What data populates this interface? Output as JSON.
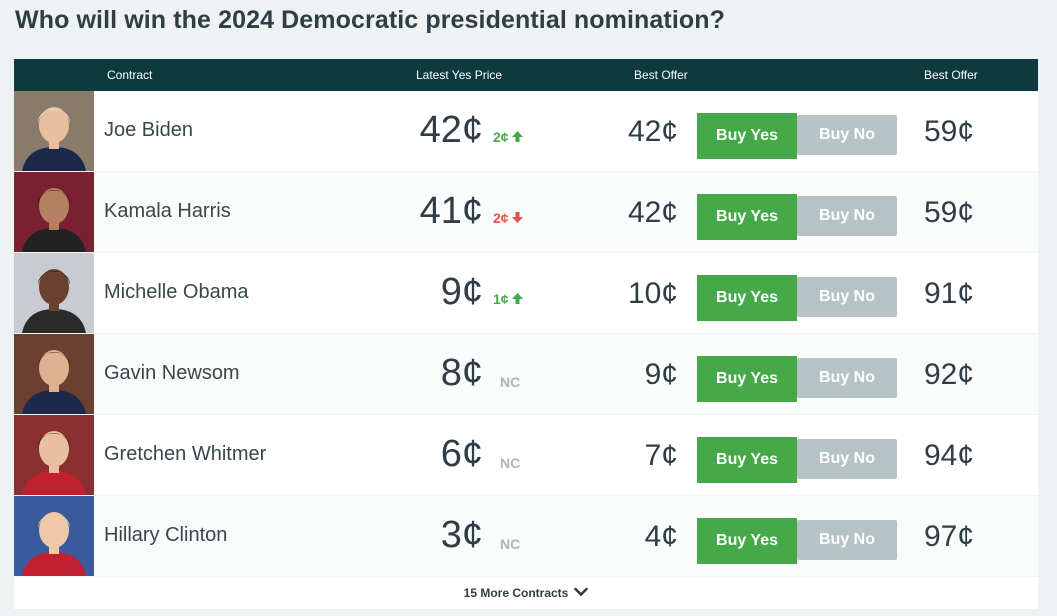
{
  "title": "Who will win the 2024 Democratic presidential nomination?",
  "headers": {
    "contract": "Contract",
    "latest_yes_price": "Latest Yes Price",
    "best_offer_yes": "Best Offer",
    "best_offer_no": "Best Offer"
  },
  "rows": [
    {
      "name": "Joe Biden",
      "price": "42¢",
      "change": "2¢",
      "direction": "up",
      "best_yes": "42¢",
      "buy_yes": "Buy Yes",
      "buy_no": "Buy No",
      "best_no": "59¢",
      "avatar_bg": "#8a7a6a",
      "skin": "#e8c0a0",
      "hair": "#f2f2f2",
      "shirt": "#1c2a4a"
    },
    {
      "name": "Kamala Harris",
      "price": "41¢",
      "change": "2¢",
      "direction": "down",
      "best_yes": "42¢",
      "buy_yes": "Buy Yes",
      "buy_no": "Buy No",
      "best_no": "59¢",
      "avatar_bg": "#7a2030",
      "skin": "#b58060",
      "hair": "#2a1a12",
      "shirt": "#222222"
    },
    {
      "name": "Michelle Obama",
      "price": "9¢",
      "change": "1¢",
      "direction": "up",
      "best_yes": "10¢",
      "buy_yes": "Buy Yes",
      "buy_no": "Buy No",
      "best_no": "91¢",
      "avatar_bg": "#c8ccd0",
      "skin": "#6a4030",
      "hair": "#1a1008",
      "shirt": "#2a2a2a"
    },
    {
      "name": "Gavin Newsom",
      "price": "8¢",
      "change": "NC",
      "direction": "nc",
      "best_yes": "9¢",
      "buy_yes": "Buy Yes",
      "buy_no": "Buy No",
      "best_no": "92¢",
      "avatar_bg": "#6a4030",
      "skin": "#e0b090",
      "hair": "#3a2a20",
      "shirt": "#1c2a4a"
    },
    {
      "name": "Gretchen Whitmer",
      "price": "6¢",
      "change": "NC",
      "direction": "nc",
      "best_yes": "7¢",
      "buy_yes": "Buy Yes",
      "buy_no": "Buy No",
      "best_no": "94¢",
      "avatar_bg": "#8a3030",
      "skin": "#e8c0a0",
      "hair": "#3a2418",
      "shirt": "#c02030"
    },
    {
      "name": "Hillary Clinton",
      "price": "3¢",
      "change": "NC",
      "direction": "nc",
      "best_yes": "4¢",
      "buy_yes": "Buy Yes",
      "buy_no": "Buy No",
      "best_no": "97¢",
      "avatar_bg": "#3a5aa0",
      "skin": "#f0c8a8",
      "hair": "#e8d8a0",
      "shirt": "#c02030"
    }
  ],
  "footer": {
    "label": "15 More Contracts",
    "icon": "chevron-down-icon"
  },
  "colors": {
    "header_bg": "#0c3a3e",
    "buy_yes": "#45a849",
    "buy_no": "#b6c3c4",
    "up": "#45a849",
    "down": "#e25347"
  }
}
